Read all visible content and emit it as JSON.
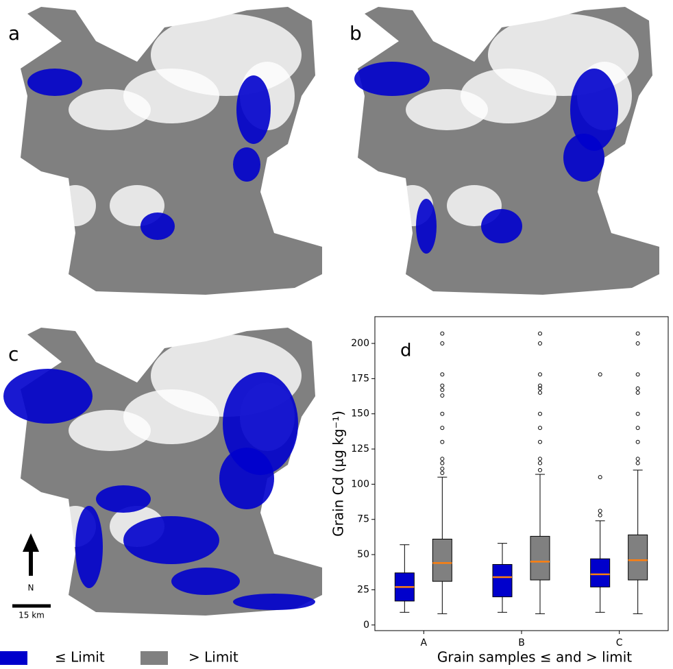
{
  "panels": [
    "a",
    "b",
    "c"
  ],
  "north": "N",
  "scale": "15 km",
  "chart_data": {
    "type": "box",
    "label": "d",
    "ylabel": "Grain Cd (µg kg⁻¹)",
    "xlabel": "Grain samples ≤ and > limit",
    "categories": [
      "A",
      "B",
      "C"
    ],
    "ylim": [
      -4,
      219
    ],
    "yticks": [
      0,
      25,
      50,
      75,
      100,
      125,
      150,
      175,
      200
    ],
    "median_color": "#ff7f0e",
    "series": [
      {
        "name": "≤ Limit",
        "color": "#0000cc",
        "values": [
          {
            "whislo": 9,
            "q1": 17,
            "med": 27,
            "q3": 37,
            "whishi": 57,
            "fliers": []
          },
          {
            "whislo": 9,
            "q1": 20,
            "med": 34,
            "q3": 43,
            "whishi": 58,
            "fliers": []
          },
          {
            "whislo": 9,
            "q1": 27,
            "med": 36,
            "q3": 47,
            "whishi": 74,
            "fliers": [
              78,
              81,
              105,
              178
            ]
          }
        ]
      },
      {
        "name": "> Limit",
        "color": "#808080",
        "values": [
          {
            "whislo": 8,
            "q1": 31,
            "med": 44,
            "q3": 61,
            "whishi": 105,
            "fliers": [
              108,
              111,
              115,
              118,
              130,
              140,
              150,
              163,
              167,
              170,
              178,
              200,
              207
            ]
          },
          {
            "whislo": 8,
            "q1": 32,
            "med": 45,
            "q3": 63,
            "whishi": 107,
            "fliers": [
              110,
              115,
              118,
              130,
              140,
              150,
              165,
              168,
              170,
              178,
              200,
              207
            ]
          },
          {
            "whislo": 8,
            "q1": 32,
            "med": 46,
            "q3": 64,
            "whishi": 110,
            "fliers": [
              115,
              118,
              130,
              140,
              150,
              165,
              168,
              178,
              200,
              207
            ]
          }
        ]
      }
    ]
  }
}
